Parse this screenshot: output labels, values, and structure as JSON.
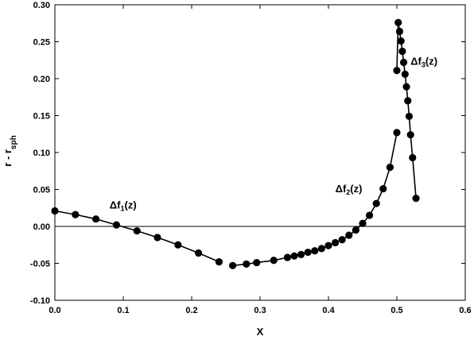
{
  "chart_data": {
    "type": "line",
    "xlabel": "X",
    "ylabel": {
      "main": "r - r",
      "sub": "sph"
    },
    "xlim": [
      0.0,
      0.6
    ],
    "ylim": [
      -0.1,
      0.3
    ],
    "xticks": [
      "0.0",
      "0.1",
      "0.2",
      "0.3",
      "0.4",
      "0.5",
      "0.6"
    ],
    "yticks": [
      "-0.10",
      "-0.05",
      "0.00",
      "0.05",
      "0.10",
      "0.15",
      "0.20",
      "0.25",
      "0.30"
    ],
    "zero_line": true,
    "grid": false,
    "series": [
      {
        "x": [
          0.0,
          0.03,
          0.06,
          0.09,
          0.12,
          0.15,
          0.18,
          0.21,
          0.24
        ],
        "y": [
          0.021,
          0.016,
          0.01,
          0.002,
          -0.006,
          -0.015,
          -0.025,
          -0.036,
          -0.048
        ]
      },
      {
        "x": [
          0.26,
          0.28,
          0.295,
          0.32,
          0.34,
          0.35,
          0.36,
          0.37,
          0.38,
          0.39,
          0.4,
          0.41,
          0.42,
          0.43,
          0.44,
          0.45,
          0.46,
          0.47,
          0.48,
          0.49,
          0.5
        ],
        "y": [
          -0.053,
          -0.051,
          -0.049,
          -0.046,
          -0.042,
          -0.04,
          -0.038,
          -0.035,
          -0.033,
          -0.03,
          -0.026,
          -0.022,
          -0.018,
          -0.012,
          -0.005,
          0.004,
          0.015,
          0.031,
          0.051,
          0.08,
          0.127
        ]
      },
      {
        "x": [
          0.5,
          0.502,
          0.504,
          0.506,
          0.508,
          0.51,
          0.512,
          0.514,
          0.516,
          0.518,
          0.52,
          0.523,
          0.528
        ],
        "y": [
          0.211,
          0.276,
          0.264,
          0.251,
          0.237,
          0.222,
          0.206,
          0.189,
          0.17,
          0.149,
          0.124,
          0.093,
          0.038
        ]
      }
    ],
    "annotations": [
      {
        "main": "Δf",
        "sub": "1",
        "tail": "(z)",
        "x": 0.08,
        "y": 0.024
      },
      {
        "main": "Δf",
        "sub": "2",
        "tail": "(z)",
        "x": 0.41,
        "y": 0.046
      },
      {
        "main": "Δf",
        "sub": "3",
        "tail": "(z)",
        "x": 0.52,
        "y": 0.219
      }
    ]
  }
}
